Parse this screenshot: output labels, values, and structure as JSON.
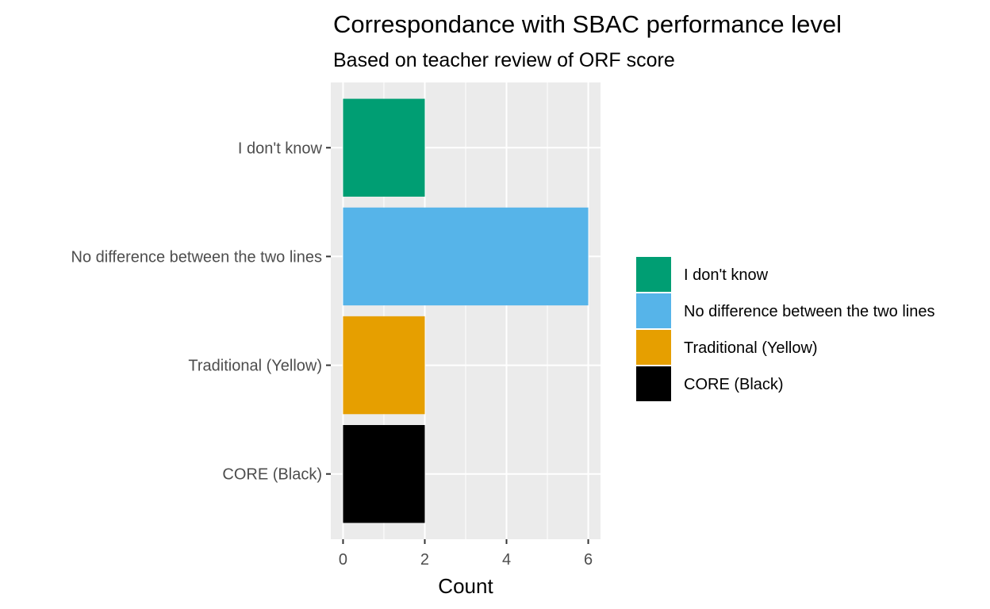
{
  "chart_data": {
    "type": "bar",
    "orientation": "horizontal",
    "title": "Correspondance with SBAC performance level",
    "subtitle": "Based on teacher review of ORF score",
    "xlabel": "Count",
    "ylabel": "",
    "categories": [
      "I don't know",
      "No difference between the two lines",
      "Traditional (Yellow)",
      "CORE (Black)"
    ],
    "values": [
      2,
      6,
      2,
      2
    ],
    "colors": [
      "#009E73",
      "#56B4E9",
      "#E69F00",
      "#000000"
    ],
    "xlim": [
      -0.3,
      6.3
    ],
    "xticks": [
      0,
      2,
      4,
      6
    ],
    "grid": true,
    "panel_background": "#EBEBEB",
    "legend": {
      "position": "right",
      "entries": [
        "I don't know",
        "No difference between the two lines",
        "Traditional (Yellow)",
        "CORE (Black)"
      ]
    }
  }
}
